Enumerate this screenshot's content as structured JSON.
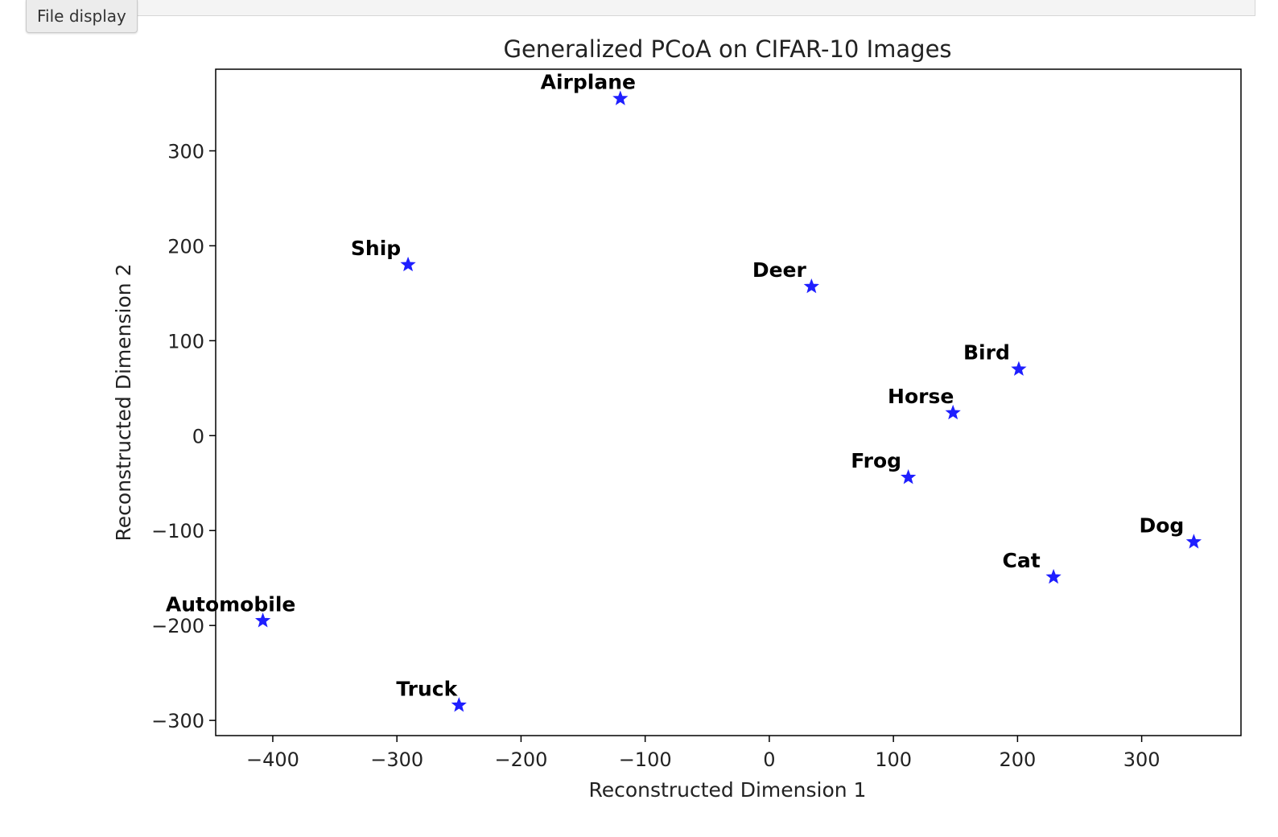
{
  "toolbar": {
    "file_display_label": "File display"
  },
  "chart_data": {
    "type": "scatter",
    "title": "Generalized PCoA on CIFAR-10 Images",
    "xlabel": "Reconstructed Dimension 1",
    "ylabel": "Reconstructed Dimension 2",
    "xlim": [
      -446,
      380
    ],
    "ylim": [
      -316,
      386
    ],
    "xticks": [
      -400,
      -300,
      -200,
      -100,
      0,
      100,
      200,
      300
    ],
    "yticks": [
      -300,
      -200,
      -100,
      0,
      100,
      200,
      300
    ],
    "grid": false,
    "marker": "star",
    "marker_color": "#1f1fff",
    "points": [
      {
        "label": "Airplane",
        "x": -120,
        "y": 355
      },
      {
        "label": "Ship",
        "x": -291,
        "y": 180
      },
      {
        "label": "Deer",
        "x": 34,
        "y": 157
      },
      {
        "label": "Bird",
        "x": 201,
        "y": 70
      },
      {
        "label": "Horse",
        "x": 148,
        "y": 24
      },
      {
        "label": "Frog",
        "x": 112,
        "y": -44
      },
      {
        "label": "Dog",
        "x": 342,
        "y": -112
      },
      {
        "label": "Cat",
        "x": 229,
        "y": -149
      },
      {
        "label": "Automobile",
        "x": -408,
        "y": -195
      },
      {
        "label": "Truck",
        "x": -250,
        "y": -284
      }
    ]
  }
}
